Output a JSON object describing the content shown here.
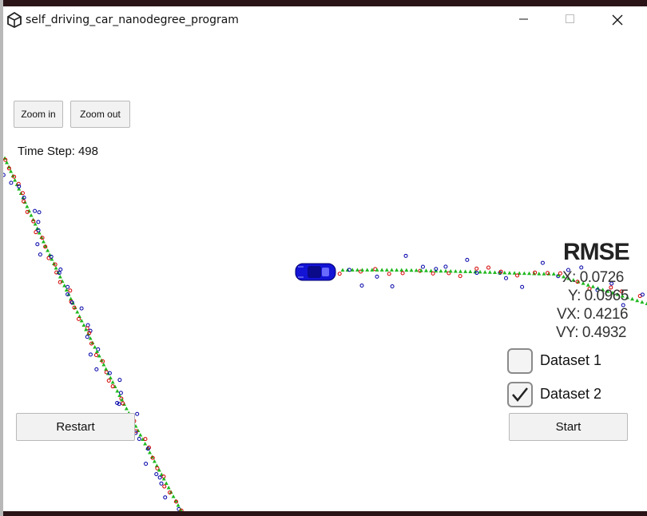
{
  "window": {
    "title": "self_driving_car_nanodegree_program"
  },
  "controls": {
    "zoom_in_label": "Zoom in",
    "zoom_out_label": "Zoom out",
    "restart_label": "Restart",
    "start_label": "Start"
  },
  "status": {
    "time_step_label": "Time Step:",
    "time_step_value": "498"
  },
  "rmse": {
    "title": "RMSE",
    "x": "X: 0.0726",
    "y": "Y: 0.0965",
    "vx": "VX: 0.4216",
    "vy": "VY: 0.4932"
  },
  "datasets": [
    {
      "label": "Dataset 1",
      "checked": false
    },
    {
      "label": "Dataset 2",
      "checked": true
    }
  ],
  "legend_colors": {
    "lidar": "#d40000",
    "radar": "#0000a8",
    "estimate": "#1fb81f",
    "car": "#1414d6"
  }
}
